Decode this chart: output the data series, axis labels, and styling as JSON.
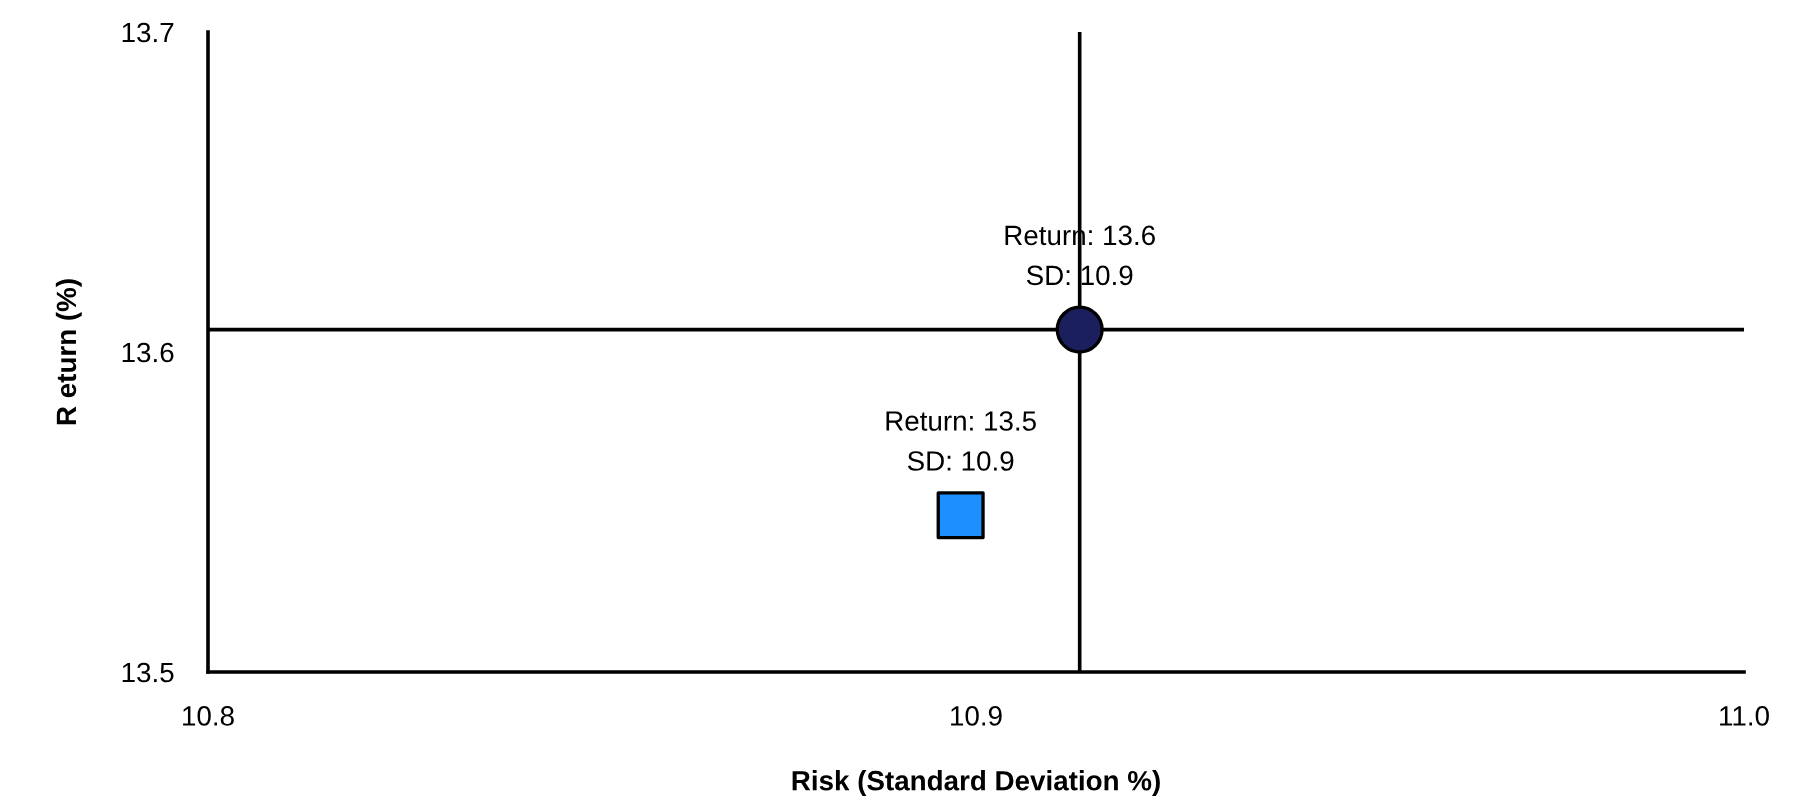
{
  "chart_data": {
    "type": "scatter",
    "xlabel": "Risk (Standard Deviation %)",
    "ylabel": "R eturn (%)",
    "series": [
      {
        "color": "#1b1f5e",
        "marker": "circle",
        "x": [
          10.9135
        ],
        "values": [
          13.607
        ]
      },
      {
        "color": "#1e8fff",
        "marker": "square",
        "x": [
          10.898
        ],
        "values": [
          13.549
        ]
      }
    ],
    "xlim": [
      10.8,
      11.0
    ],
    "ylim": [
      13.5,
      13.7
    ],
    "xticks": [
      10.8,
      10.9,
      {
        "value": 11.0,
        "label": "11.0"
      }
    ],
    "yticks": [
      13.5,
      13.6,
      13.7
    ],
    "ref_lines": [
      {
        "axis": "x",
        "value": 10.9135,
        "color": "#000000"
      },
      {
        "axis": "y",
        "value": 13.607,
        "color": "#000000"
      }
    ],
    "annotations": [
      {
        "text": "Return: 13.6\nSD: 10.9",
        "x": 10.9135,
        "y": 13.607
      },
      {
        "text": "Return: 13.5\nSD: 10.9",
        "x": 10.898,
        "y": 13.549
      }
    ],
    "grid": false,
    "legend": false
  }
}
